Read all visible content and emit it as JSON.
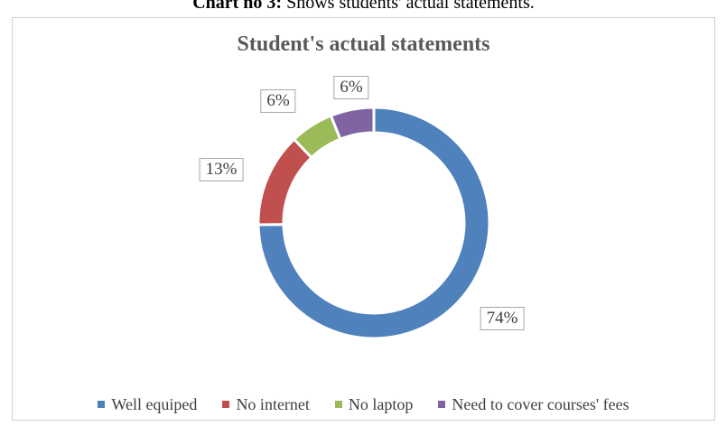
{
  "caption": {
    "bold": "Chart no 3:",
    "text": " Shows students' actual statements."
  },
  "chart_data": {
    "type": "pie",
    "style": "donut",
    "title": "Student's actual statements",
    "categories": [
      "Well equiped",
      "No internet",
      "No laptop",
      "Need to cover courses' fees"
    ],
    "values": [
      74,
      13,
      6,
      6
    ],
    "labels": [
      "74%",
      "13%",
      "6%",
      "6%"
    ],
    "colors": [
      "#4f81bd",
      "#c0504d",
      "#9bbb59",
      "#8064a2"
    ],
    "legend_position": "bottom",
    "start_angle_deg": 0,
    "direction": "clockwise"
  }
}
